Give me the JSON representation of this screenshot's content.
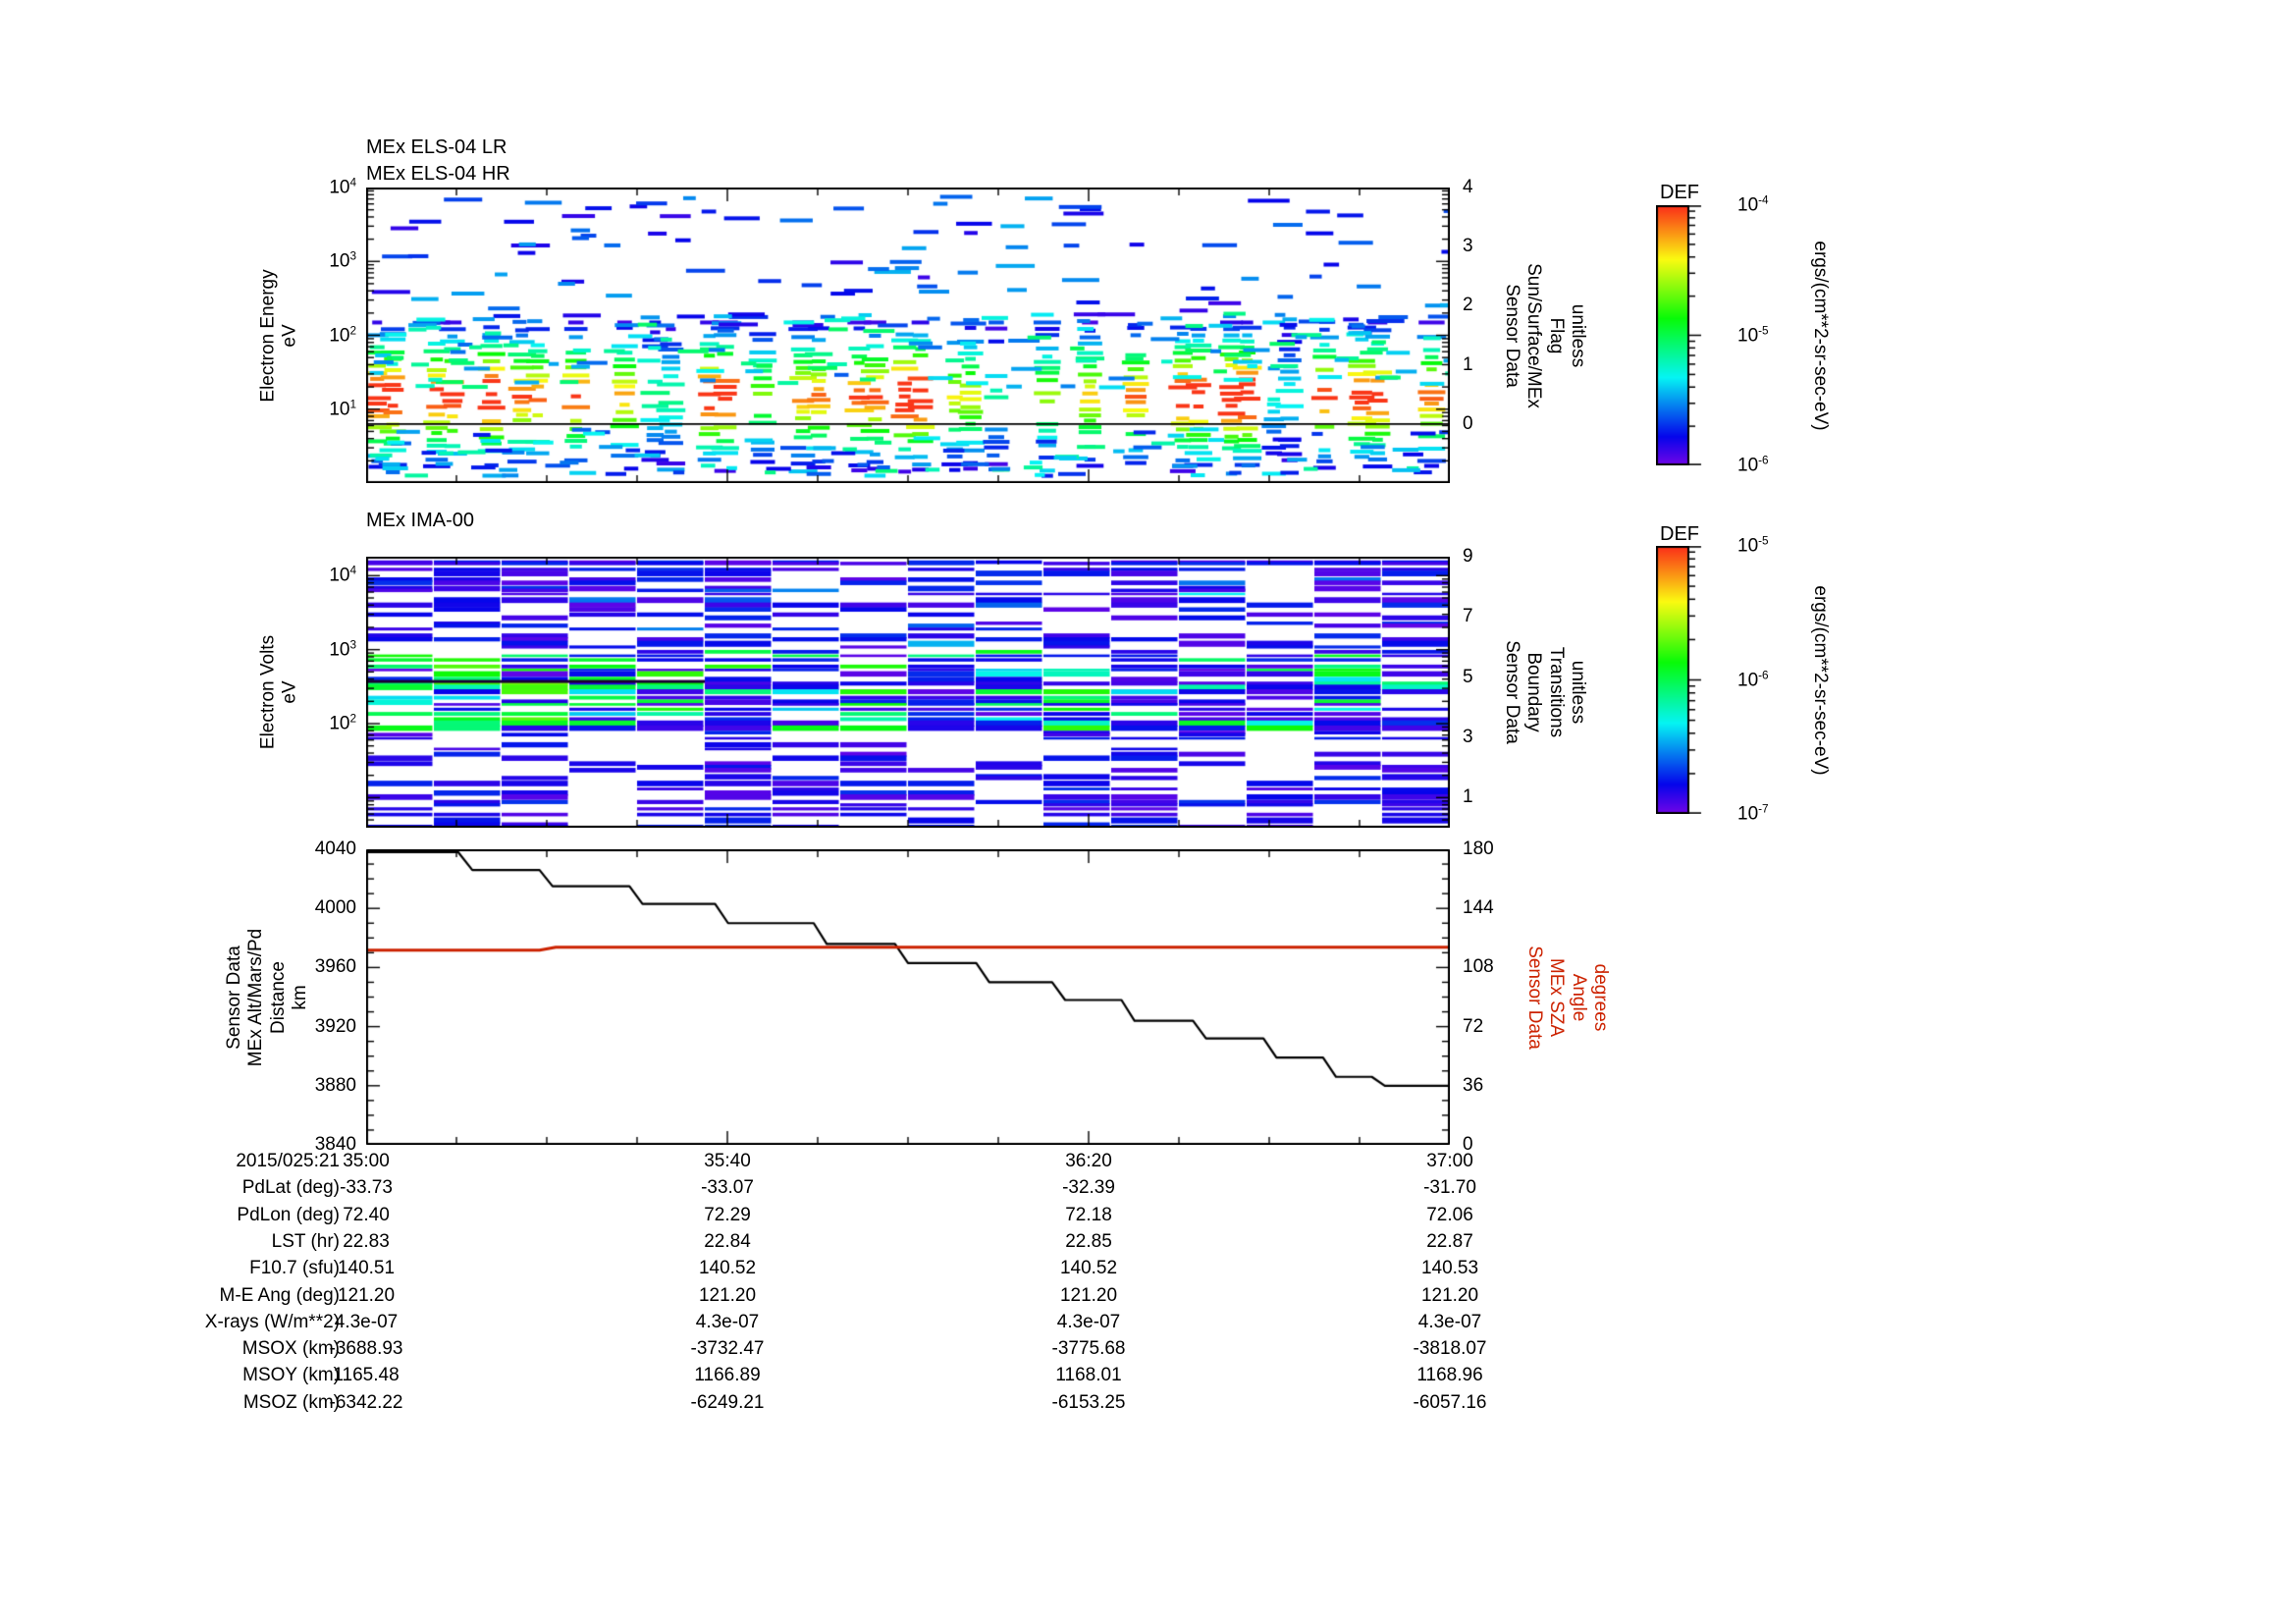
{
  "els": {
    "title_lr": "MEx ELS-04 LR",
    "title_hr": "MEx ELS-04 HR",
    "ylabel": [
      "Electron Energy",
      "eV"
    ],
    "yticks": [
      "10^4",
      "10^3",
      "10^2",
      "10^1"
    ],
    "right_label": [
      "Sensor Data",
      "Sun/Surface/MEx",
      "Flag",
      "unitless"
    ],
    "right_ticks": [
      "4",
      "3",
      "2",
      "1",
      "0"
    ]
  },
  "ima": {
    "title": "MEx IMA-00",
    "ylabel": [
      "Electron Volts",
      "eV"
    ],
    "yticks": [
      "10^4",
      "10^3",
      "10^2"
    ],
    "right_label": [
      "Sensor Data",
      "Boundary",
      "Transitions",
      "unitless"
    ],
    "right_ticks": [
      "9",
      "7",
      "5",
      "3",
      "1"
    ]
  },
  "alt": {
    "left_label": [
      "Sensor Data",
      "MEx Alt/Mars/Pd",
      "Distance",
      "km"
    ],
    "left_ticks": [
      "4040",
      "4000",
      "3960",
      "3920",
      "3880",
      "3840"
    ],
    "right_label": [
      "Sensor Data",
      "MEx SZA",
      "Angle",
      "degrees"
    ],
    "right_ticks": [
      "180",
      "144",
      "108",
      "72",
      "36",
      "0"
    ],
    "right_label_color": "#cc2200"
  },
  "colorbars": [
    {
      "title": "DEF",
      "ticks": [
        "10^-4",
        "10^-5",
        "10^-6"
      ],
      "units": "ergs/(cm**2-sr-sec-eV)"
    },
    {
      "title": "DEF",
      "ticks": [
        "10^-5",
        "10^-6",
        "10^-7"
      ],
      "units": "ergs/(cm**2-sr-sec-eV)"
    }
  ],
  "xaxis": {
    "date_label": "2015/025:21",
    "ticks": [
      "35:00",
      "35:40",
      "36:20",
      "37:00"
    ]
  },
  "table": {
    "rows": [
      {
        "label": "2015/025:21",
        "values": [
          "35:00",
          "35:40",
          "36:20",
          "37:00"
        ]
      },
      {
        "label": "PdLat (deg)",
        "values": [
          "-33.73",
          "-33.07",
          "-32.39",
          "-31.70"
        ]
      },
      {
        "label": "PdLon (deg)",
        "values": [
          "72.40",
          "72.29",
          "72.18",
          "72.06"
        ]
      },
      {
        "label": "LST (hr)",
        "values": [
          "22.83",
          "22.84",
          "22.85",
          "22.87"
        ]
      },
      {
        "label": "F10.7 (sfu)",
        "values": [
          "140.51",
          "140.52",
          "140.52",
          "140.53"
        ]
      },
      {
        "label": "M-E Ang (deg)",
        "values": [
          "121.20",
          "121.20",
          "121.20",
          "121.20"
        ]
      },
      {
        "label": "X-rays (W/m**2)",
        "values": [
          "4.3e-07",
          "4.3e-07",
          "4.3e-07",
          "4.3e-07"
        ]
      },
      {
        "label": "MSOX (km)",
        "values": [
          "-3688.93",
          "-3732.47",
          "-3775.68",
          "-3818.07"
        ]
      },
      {
        "label": "MSOY (km)",
        "values": [
          "1165.48",
          "1166.89",
          "1168.01",
          "1168.96"
        ]
      },
      {
        "label": "MSOZ (km)",
        "values": [
          "-6342.22",
          "-6249.21",
          "-6153.25",
          "-6057.16"
        ]
      }
    ]
  },
  "chart_data": [
    {
      "type": "heatmap",
      "name": "els_spectrogram",
      "title": "MEx ELS-04 LR / MEx ELS-04 HR",
      "ylabel": "Electron Energy eV",
      "yscale": "log",
      "ylim": [
        1,
        10000
      ],
      "x_time_range": [
        "2015/025:21:35:00",
        "2015/025:21:37:00"
      ],
      "colorbar": {
        "label": "DEF",
        "units": "ergs/(cm**2-sr-sec-eV)",
        "value_range": [
          1e-06,
          0.0001
        ]
      },
      "right_axis": {
        "label": "Sensor Data Sun/Surface/MEx Flag unitless",
        "ylim": [
          -1,
          4
        ],
        "flag_value": 0
      },
      "pattern": {
        "description": "Recurring vertical bursts of short horizontal dashes; intense red/orange core near 10 eV with yellow-green-cyan wings 3-100 eV; sparse blue/cyan dashes scattered 100-7000 eV; solid black flag line at value 0 (~80% down the panel).",
        "burst_count": 23,
        "burst_peak_energy_eV": 10
      }
    },
    {
      "type": "heatmap",
      "name": "ima_spectrogram",
      "title": "MEx IMA-00",
      "ylabel": "Electron Volts eV",
      "yscale": "log",
      "ylim": [
        4,
        18000
      ],
      "x_time_range": [
        "2015/025:21:35:00",
        "2015/025:21:37:00"
      ],
      "colorbar": {
        "label": "DEF",
        "units": "ergs/(cm**2-sr-sec-eV)",
        "value_range": [
          1e-07,
          1e-05
        ]
      },
      "right_axis": {
        "label": "Sensor Data Boundary Transitions unitless",
        "ylim": [
          0,
          9
        ]
      },
      "pattern": {
        "description": "16 contiguous column blocks of thin full-width horizontal stripes, dominantly violet/blue; green-cyan enhancement band between ~100 and ~1000 eV strongest in the first third; white data gaps in the lower half of several columns.",
        "column_blocks": 16
      }
    },
    {
      "type": "line",
      "name": "altitude_and_sza",
      "xticks": [
        "35:00",
        "35:40",
        "36:20",
        "37:00"
      ],
      "left_axis": {
        "label": "Sensor Data MEx Alt/Mars/Pd Distance km",
        "ylim": [
          3840,
          4040
        ]
      },
      "right_axis": {
        "label": "Sensor Data MEx SZA Angle degrees",
        "ylim": [
          0,
          180
        ]
      },
      "series": [
        {
          "name": "MEx Alt/Mars/Pd Distance",
          "color": "#000000",
          "axis": "left",
          "x_frac": [
            0.0,
            0.085,
            0.098,
            0.16,
            0.172,
            0.243,
            0.255,
            0.322,
            0.334,
            0.413,
            0.425,
            0.488,
            0.5,
            0.563,
            0.575,
            0.633,
            0.645,
            0.697,
            0.709,
            0.763,
            0.775,
            0.828,
            0.84,
            0.883,
            0.895,
            0.928,
            0.94,
            1.0
          ],
          "y": [
            4038,
            4038,
            4026,
            4026,
            4015,
            4015,
            4003,
            4003,
            3990,
            3990,
            3976,
            3976,
            3963,
            3963,
            3950,
            3950,
            3938,
            3938,
            3924,
            3924,
            3912,
            3912,
            3899,
            3899,
            3886,
            3886,
            3880,
            3880
          ]
        },
        {
          "name": "MEx SZA Angle",
          "color": "#cc2200",
          "axis": "right",
          "x_frac": [
            0.0,
            0.16,
            0.175,
            1.0
          ],
          "y": [
            118.6,
            118.6,
            120.4,
            120.4
          ]
        }
      ]
    }
  ]
}
